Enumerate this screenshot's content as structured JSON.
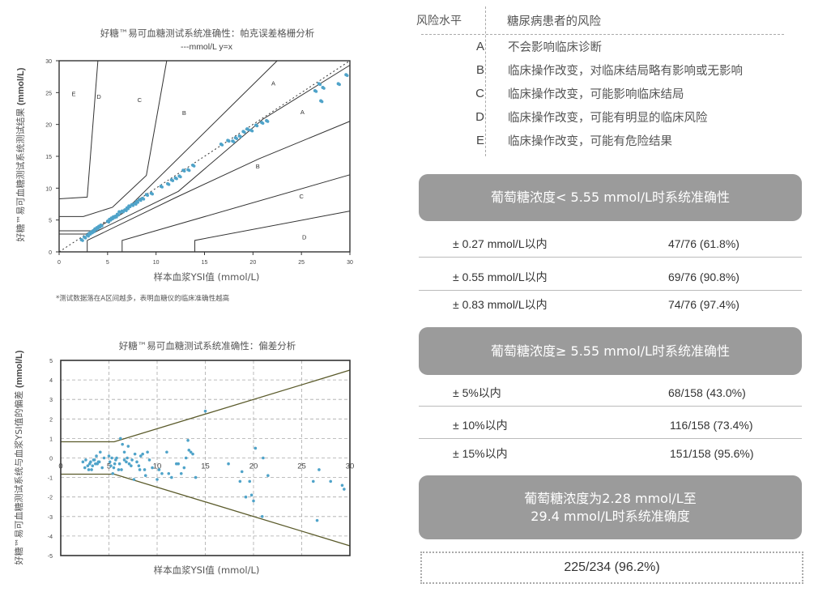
{
  "clarke_chart": {
    "title": "好糖™易可血糖测试系统准确性：帕克误差格栅分析",
    "subtitle": "---mmol/L  y=x",
    "ylabel_cn": "好糖™易可血糖测试系统测试结果",
    "ylabel_unit": "(mmol/L)",
    "xlabel": "样本血浆YSI值 (mmol/L)",
    "note": "*测试数据落在A区间越多，表明血糖仪的临床准确性越高",
    "zone_labels": [
      "E",
      "D",
      "C",
      "B",
      "A",
      "A",
      "B",
      "C",
      "D"
    ]
  },
  "bias_chart": {
    "title": "好糖™易可血糖测试系统准确性：偏差分析",
    "ylabel_cn": "好糖™易可血糖测试系统与血浆YSI值的偏差",
    "ylabel_unit": "(mmol/L)",
    "xlabel": "样本血浆YSI值 (mmol/L)"
  },
  "chart_data": [
    {
      "type": "scatter",
      "title": "好糖™易可血糖测试系统准确性：帕克误差格栅分析",
      "subtitle": "---mmol/L  y=x",
      "xlabel": "样本血浆YSI值 (mmol/L)",
      "ylabel": "好糖™易可血糖测试系统测试结果 (mmol/L)",
      "xlim": [
        0,
        30
      ],
      "ylim": [
        0,
        30
      ],
      "xticks": [
        0,
        5,
        10,
        15,
        20,
        25,
        30
      ],
      "yticks": [
        0,
        5,
        10,
        15,
        20,
        25,
        30
      ],
      "grid": false,
      "reference_line": "y=x (dotted)",
      "zones": [
        "A",
        "B",
        "C",
        "D",
        "E"
      ],
      "series": [
        {
          "name": "测试结果",
          "color": "#4fa3c9",
          "x": [
            2.3,
            2.6,
            2.9,
            3.1,
            3.3,
            3.5,
            3.7,
            3.9,
            4.1,
            4.3,
            5.0,
            5.2,
            5.4,
            5.6,
            5.8,
            6.0,
            6.2,
            6.5,
            6.8,
            7.0,
            7.2,
            7.5,
            7.8,
            8.0,
            8.3,
            8.6,
            9.0,
            9.5,
            10.5,
            11.2,
            11.6,
            12.0,
            12.4,
            12.8,
            13.3,
            13.8,
            16.7,
            17.4,
            17.9,
            18.2,
            18.6,
            19.0,
            19.4,
            19.8,
            20.3,
            20.9,
            21.4,
            26.4,
            26.8,
            27.0,
            27.2,
            28.8,
            29.6
          ],
          "y": [
            1.9,
            2.3,
            2.6,
            2.9,
            3.1,
            3.3,
            3.6,
            3.8,
            4.0,
            4.2,
            4.8,
            5.1,
            5.3,
            5.5,
            5.6,
            5.9,
            6.3,
            6.4,
            6.6,
            6.9,
            7.2,
            7.4,
            7.6,
            7.9,
            8.2,
            8.4,
            9.0,
            9.2,
            10.3,
            10.7,
            11.3,
            11.6,
            11.9,
            12.8,
            12.9,
            13.6,
            16.9,
            17.5,
            17.4,
            17.9,
            18.2,
            18.9,
            19.3,
            19.1,
            19.9,
            20.3,
            20.6,
            25.3,
            26.4,
            23.7,
            25.8,
            26.4,
            27.8
          ]
        }
      ]
    },
    {
      "type": "scatter",
      "title": "好糖™易可血糖测试系统准确性：偏差分析",
      "xlabel": "样本血浆YSI值 (mmol/L)",
      "ylabel": "好糖™易可血糖测试系统与血浆YSI值的偏差 (mmol/L)",
      "xlim": [
        0,
        30
      ],
      "ylim": [
        -5,
        5
      ],
      "xticks": [
        0,
        5,
        10,
        15,
        20,
        25,
        30
      ],
      "yticks": [
        -5,
        -4,
        -3,
        -2,
        -1,
        0,
        1,
        2,
        3,
        4,
        5
      ],
      "grid": true,
      "limit_lines": {
        "upper": {
          "x": [
            0,
            5.55,
            30
          ],
          "y": [
            0.83,
            0.83,
            4.5
          ]
        },
        "lower": {
          "x": [
            0,
            5.55,
            30
          ],
          "y": [
            -0.83,
            -0.83,
            -4.5
          ]
        },
        "color": "#5a5a2a"
      },
      "series": [
        {
          "name": "偏差",
          "color": "#4fa3c9",
          "x": [
            2.3,
            2.5,
            2.8,
            3.0,
            3.2,
            3.4,
            3.6,
            3.9,
            4.1,
            4.3,
            4.5,
            5.0,
            5.2,
            5.4,
            5.6,
            5.8,
            6.0,
            6.2,
            6.4,
            6.6,
            6.8,
            7.0,
            7.3,
            7.6,
            7.9,
            8.2,
            8.5,
            8.8,
            9.0,
            9.5,
            10.0,
            10.5,
            11.0,
            11.5,
            12.0,
            12.5,
            13.0,
            13.2,
            13.5,
            14.0,
            15.0,
            17.4,
            18.6,
            18.8,
            19.2,
            19.6,
            19.8,
            20.0,
            20.2,
            20.9,
            21.0,
            21.5,
            26.2,
            26.6,
            26.8,
            28.0,
            29.2,
            29.4
          ],
          "y": [
            -0.2,
            -0.5,
            -0.4,
            -0.3,
            -0.6,
            -0.1,
            -0.3,
            -0.2,
            0.3,
            -0.5,
            0.0,
            0.1,
            -0.4,
            -0.8,
            -0.3,
            0.0,
            -0.6,
            1.0,
            0.7,
            0.3,
            -0.2,
            0.6,
            -0.4,
            -1.1,
            -0.2,
            -0.6,
            0.2,
            -0.9,
            0.3,
            -0.5,
            -1.1,
            -0.8,
            0.3,
            -1.0,
            -0.3,
            -0.8,
            0.0,
            0.9,
            0.3,
            -1.0,
            2.4,
            -0.3,
            -1.2,
            -0.7,
            -2.0,
            -1.2,
            -1.9,
            -2.2,
            0.5,
            -3.0,
            0.0,
            -0.9,
            -1.2,
            -3.2,
            -0.6,
            -1.2,
            -1.4,
            -1.6
          ]
        }
      ]
    }
  ],
  "risk_table": {
    "header_level": "风险水平",
    "header_desc": "糖尿病患者的风险",
    "rows": [
      {
        "level": "A",
        "desc": "不会影响临床诊断"
      },
      {
        "level": "B",
        "desc": "临床操作改变，对临床结局略有影响或无影响"
      },
      {
        "level": "C",
        "desc": "临床操作改变，可能影响临床结局"
      },
      {
        "level": "D",
        "desc": "临床操作改变，可能有明显的临床风险"
      },
      {
        "level": "E",
        "desc": "临床操作改变，可能有危险结果"
      }
    ]
  },
  "accuracy_low": {
    "title": "葡萄糖浓度< 5.55 mmol/L时系统准确性",
    "rows": [
      {
        "range": "± 0.27 mmol/L以内",
        "value": "47/76 (61.8%)"
      },
      {
        "range": "± 0.55 mmol/L以内",
        "value": "69/76 (90.8%)"
      },
      {
        "range": "± 0.83 mmol/L以内",
        "value": "74/76 (97.4%)"
      }
    ]
  },
  "accuracy_high": {
    "title": "葡萄糖浓度≥ 5.55 mmol/L时系统准确性",
    "rows": [
      {
        "range": "± 5%以内",
        "value": "68/158 (43.0%)"
      },
      {
        "range": "± 10%以内",
        "value": "116/158 (73.4%)"
      },
      {
        "range": "± 15%以内",
        "value": "151/158 (95.6%)"
      }
    ]
  },
  "accuracy_overall": {
    "title_line1": "葡萄糖浓度为2.28 mmol/L至",
    "title_line2": "29.4 mmol/L时系统准确度",
    "value": "225/234 (96.2%)"
  },
  "colors": {
    "point": "#4fa3c9",
    "band": "#9b9b9b",
    "limit_line": "#5a5a2a"
  }
}
